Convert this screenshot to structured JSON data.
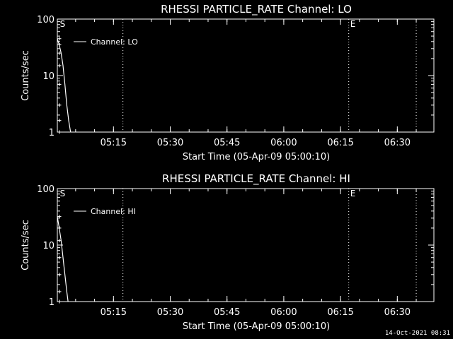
{
  "colors": {
    "background": "#000000",
    "foreground": "#ffffff"
  },
  "footer": {
    "timestamp": "14-Oct-2021 08:31"
  },
  "chart_data": [
    {
      "type": "line",
      "title": "RHESSI PARTICLE_RATE Channel: LO",
      "xlabel": "Start Time (05-Apr-09 05:00:10)",
      "ylabel": "Counts/sec",
      "yscale": "log",
      "ylim": [
        1,
        100
      ],
      "xlim": [
        "05:00:10",
        "06:39:40"
      ],
      "x_ticks": [
        "05:15",
        "05:30",
        "05:45",
        "06:00",
        "06:15",
        "06:30"
      ],
      "y_ticks": [
        "1",
        "10",
        "100"
      ],
      "legend": {
        "position": "top-left",
        "entries": [
          "Channel: LO"
        ]
      },
      "series": [
        {
          "name": "Channel: LO",
          "x": [
            "05:00:10",
            "05:00:40",
            "05:01:10",
            "05:01:40",
            "05:02:10",
            "05:02:40",
            "05:03:10",
            "05:03:40"
          ],
          "y": [
            45,
            35,
            25,
            15,
            7,
            3,
            1.6,
            1
          ]
        }
      ],
      "vlines": [
        {
          "x": "05:17:30",
          "label": ""
        },
        {
          "x": "06:17:10",
          "label": ""
        },
        {
          "x": "06:35:00",
          "label": ""
        }
      ],
      "markers": [
        {
          "x": "05:00:40",
          "label": "S"
        },
        {
          "x": "06:17:10",
          "label": "E"
        }
      ]
    },
    {
      "type": "line",
      "title": "RHESSI PARTICLE_RATE Channel: HI",
      "xlabel": "Start Time (05-Apr-09 05:00:10)",
      "ylabel": "Counts/sec",
      "yscale": "log",
      "ylim": [
        1,
        100
      ],
      "xlim": [
        "05:00:10",
        "06:39:40"
      ],
      "x_ticks": [
        "05:15",
        "05:30",
        "05:45",
        "06:00",
        "06:15",
        "06:30"
      ],
      "y_ticks": [
        "1",
        "10",
        "100"
      ],
      "legend": {
        "position": "top-left",
        "entries": [
          "Channel: HI"
        ]
      },
      "series": [
        {
          "name": "Channel: HI",
          "x": [
            "05:00:10",
            "05:00:40",
            "05:01:10",
            "05:01:40",
            "05:02:10",
            "05:02:40",
            "05:03:00"
          ],
          "y": [
            32,
            20,
            12,
            6,
            3,
            1.5,
            1
          ]
        }
      ],
      "vlines": [
        {
          "x": "05:17:30",
          "label": ""
        },
        {
          "x": "06:17:10",
          "label": ""
        },
        {
          "x": "06:35:00",
          "label": ""
        }
      ],
      "markers": [
        {
          "x": "05:00:40",
          "label": "S"
        },
        {
          "x": "06:17:10",
          "label": "E"
        }
      ]
    }
  ]
}
